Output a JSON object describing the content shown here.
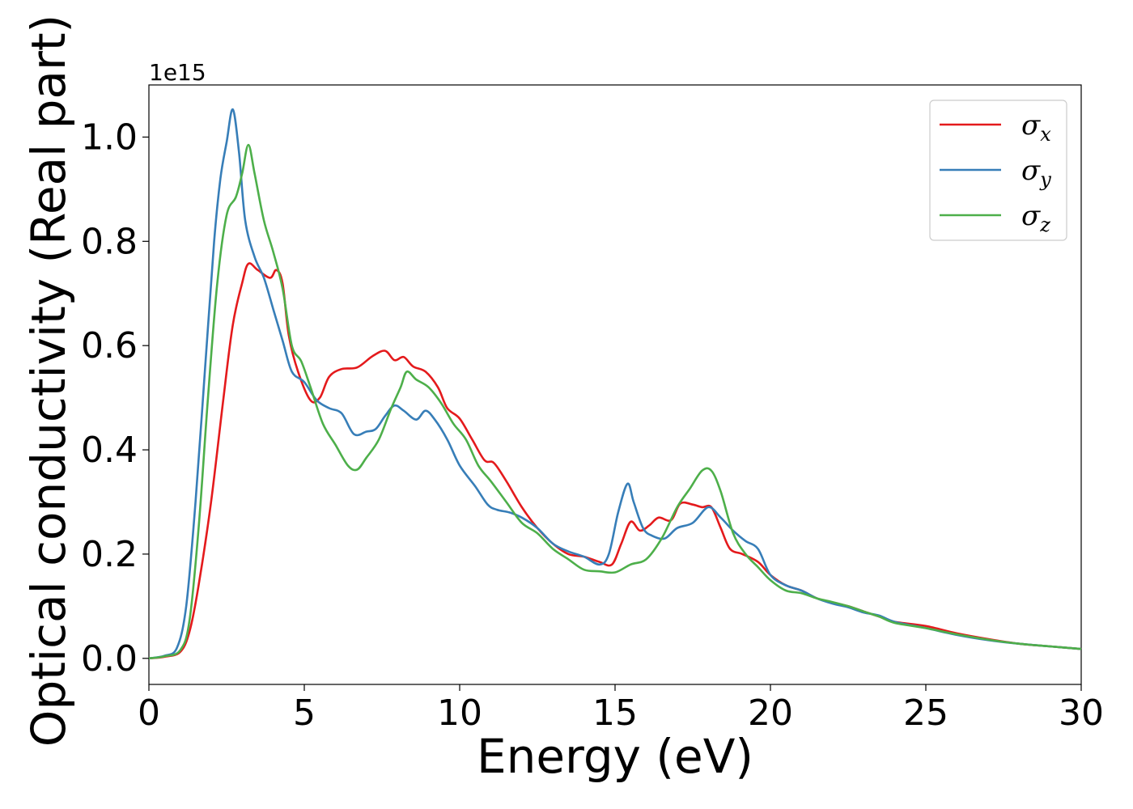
{
  "chart_data": {
    "type": "line",
    "title": "",
    "xlabel": "Energy (eV)",
    "ylabel": "Optical conductivity (Real part)",
    "y_offset_label": "1e15",
    "xlim": [
      0,
      30
    ],
    "ylim": [
      -0.05,
      1.1
    ],
    "x_ticks": [
      0,
      5,
      10,
      15,
      20,
      25,
      30
    ],
    "x_tick_labels": [
      "0",
      "5",
      "10",
      "15",
      "20",
      "25",
      "30"
    ],
    "y_ticks": [
      0.0,
      0.2,
      0.4,
      0.6,
      0.8,
      1.0
    ],
    "y_tick_labels": [
      "0.0",
      "0.2",
      "0.4",
      "0.6",
      "0.8",
      "1.0"
    ],
    "grid": false,
    "legend_position": "top-right",
    "series": [
      {
        "name": "σx",
        "label_main": "σ",
        "label_sub": "x",
        "color": "#e41a1c",
        "points": [
          [
            0,
            0
          ],
          [
            0.5,
            0.003
          ],
          [
            1.0,
            0.012
          ],
          [
            1.3,
            0.05
          ],
          [
            1.6,
            0.14
          ],
          [
            2.0,
            0.3
          ],
          [
            2.4,
            0.5
          ],
          [
            2.7,
            0.64
          ],
          [
            3.0,
            0.72
          ],
          [
            3.2,
            0.757
          ],
          [
            3.5,
            0.745
          ],
          [
            3.9,
            0.73
          ],
          [
            4.1,
            0.745
          ],
          [
            4.3,
            0.72
          ],
          [
            4.5,
            0.62
          ],
          [
            4.8,
            0.55
          ],
          [
            5.2,
            0.495
          ],
          [
            5.5,
            0.5
          ],
          [
            5.8,
            0.54
          ],
          [
            6.2,
            0.555
          ],
          [
            6.7,
            0.558
          ],
          [
            7.2,
            0.58
          ],
          [
            7.6,
            0.59
          ],
          [
            7.9,
            0.572
          ],
          [
            8.2,
            0.578
          ],
          [
            8.5,
            0.56
          ],
          [
            8.9,
            0.55
          ],
          [
            9.3,
            0.52
          ],
          [
            9.6,
            0.48
          ],
          [
            10.0,
            0.46
          ],
          [
            10.4,
            0.42
          ],
          [
            10.8,
            0.38
          ],
          [
            11.1,
            0.375
          ],
          [
            11.5,
            0.34
          ],
          [
            12.0,
            0.29
          ],
          [
            12.5,
            0.25
          ],
          [
            13.0,
            0.22
          ],
          [
            13.5,
            0.2
          ],
          [
            14.0,
            0.195
          ],
          [
            14.5,
            0.185
          ],
          [
            14.9,
            0.18
          ],
          [
            15.2,
            0.22
          ],
          [
            15.5,
            0.262
          ],
          [
            15.8,
            0.245
          ],
          [
            16.1,
            0.255
          ],
          [
            16.4,
            0.27
          ],
          [
            16.8,
            0.265
          ],
          [
            17.1,
            0.297
          ],
          [
            17.5,
            0.295
          ],
          [
            17.8,
            0.29
          ],
          [
            18.1,
            0.29
          ],
          [
            18.4,
            0.25
          ],
          [
            18.7,
            0.21
          ],
          [
            19.1,
            0.2
          ],
          [
            19.6,
            0.185
          ],
          [
            20.0,
            0.16
          ],
          [
            20.5,
            0.14
          ],
          [
            21.0,
            0.13
          ],
          [
            21.5,
            0.115
          ],
          [
            22.0,
            0.107
          ],
          [
            22.5,
            0.1
          ],
          [
            23.0,
            0.09
          ],
          [
            23.5,
            0.08
          ],
          [
            24.0,
            0.07
          ],
          [
            25.0,
            0.062
          ],
          [
            26.0,
            0.048
          ],
          [
            27.0,
            0.037
          ],
          [
            28.0,
            0.028
          ],
          [
            29.0,
            0.023
          ],
          [
            30.0,
            0.018
          ]
        ]
      },
      {
        "name": "σy",
        "label_main": "σ",
        "label_sub": "y",
        "color": "#377eb8",
        "points": [
          [
            0,
            0
          ],
          [
            0.5,
            0.005
          ],
          [
            0.9,
            0.02
          ],
          [
            1.2,
            0.1
          ],
          [
            1.5,
            0.3
          ],
          [
            1.8,
            0.55
          ],
          [
            2.1,
            0.8
          ],
          [
            2.3,
            0.92
          ],
          [
            2.5,
            0.99
          ],
          [
            2.7,
            1.053
          ],
          [
            2.9,
            0.97
          ],
          [
            3.1,
            0.84
          ],
          [
            3.4,
            0.77
          ],
          [
            3.7,
            0.73
          ],
          [
            4.0,
            0.67
          ],
          [
            4.3,
            0.61
          ],
          [
            4.6,
            0.55
          ],
          [
            5.0,
            0.53
          ],
          [
            5.4,
            0.495
          ],
          [
            5.8,
            0.48
          ],
          [
            6.2,
            0.47
          ],
          [
            6.6,
            0.43
          ],
          [
            7.0,
            0.435
          ],
          [
            7.3,
            0.44
          ],
          [
            7.6,
            0.465
          ],
          [
            7.9,
            0.485
          ],
          [
            8.2,
            0.475
          ],
          [
            8.6,
            0.458
          ],
          [
            8.9,
            0.475
          ],
          [
            9.2,
            0.458
          ],
          [
            9.6,
            0.42
          ],
          [
            10.0,
            0.37
          ],
          [
            10.5,
            0.33
          ],
          [
            10.9,
            0.295
          ],
          [
            11.2,
            0.285
          ],
          [
            11.6,
            0.28
          ],
          [
            12.0,
            0.27
          ],
          [
            12.5,
            0.25
          ],
          [
            13.0,
            0.22
          ],
          [
            13.5,
            0.205
          ],
          [
            14.0,
            0.195
          ],
          [
            14.5,
            0.18
          ],
          [
            14.8,
            0.2
          ],
          [
            15.1,
            0.28
          ],
          [
            15.4,
            0.335
          ],
          [
            15.6,
            0.3
          ],
          [
            15.9,
            0.25
          ],
          [
            16.2,
            0.235
          ],
          [
            16.6,
            0.23
          ],
          [
            17.0,
            0.25
          ],
          [
            17.5,
            0.26
          ],
          [
            18.0,
            0.29
          ],
          [
            18.4,
            0.27
          ],
          [
            18.8,
            0.245
          ],
          [
            19.2,
            0.225
          ],
          [
            19.6,
            0.21
          ],
          [
            20.0,
            0.16
          ],
          [
            20.5,
            0.14
          ],
          [
            21.0,
            0.13
          ],
          [
            21.5,
            0.115
          ],
          [
            22.0,
            0.105
          ],
          [
            22.5,
            0.098
          ],
          [
            23.0,
            0.088
          ],
          [
            23.5,
            0.082
          ],
          [
            24.0,
            0.07
          ],
          [
            25.0,
            0.058
          ],
          [
            26.0,
            0.045
          ],
          [
            27.0,
            0.035
          ],
          [
            28.0,
            0.028
          ],
          [
            29.0,
            0.023
          ],
          [
            30.0,
            0.018
          ]
        ]
      },
      {
        "name": "σz",
        "label_main": "σ",
        "label_sub": "z",
        "color": "#4daf4a",
        "points": [
          [
            0,
            0
          ],
          [
            0.5,
            0.004
          ],
          [
            1.0,
            0.015
          ],
          [
            1.3,
            0.07
          ],
          [
            1.6,
            0.25
          ],
          [
            1.9,
            0.5
          ],
          [
            2.2,
            0.72
          ],
          [
            2.5,
            0.85
          ],
          [
            2.8,
            0.885
          ],
          [
            3.0,
            0.93
          ],
          [
            3.2,
            0.985
          ],
          [
            3.4,
            0.93
          ],
          [
            3.7,
            0.84
          ],
          [
            4.0,
            0.78
          ],
          [
            4.3,
            0.71
          ],
          [
            4.6,
            0.6
          ],
          [
            4.9,
            0.57
          ],
          [
            5.2,
            0.52
          ],
          [
            5.6,
            0.45
          ],
          [
            6.0,
            0.41
          ],
          [
            6.4,
            0.37
          ],
          [
            6.7,
            0.362
          ],
          [
            7.0,
            0.385
          ],
          [
            7.4,
            0.42
          ],
          [
            7.8,
            0.48
          ],
          [
            8.1,
            0.52
          ],
          [
            8.3,
            0.55
          ],
          [
            8.6,
            0.535
          ],
          [
            9.0,
            0.52
          ],
          [
            9.4,
            0.49
          ],
          [
            9.8,
            0.45
          ],
          [
            10.2,
            0.42
          ],
          [
            10.6,
            0.37
          ],
          [
            11.0,
            0.34
          ],
          [
            11.5,
            0.3
          ],
          [
            12.0,
            0.26
          ],
          [
            12.5,
            0.24
          ],
          [
            13.0,
            0.21
          ],
          [
            13.5,
            0.19
          ],
          [
            14.0,
            0.17
          ],
          [
            14.5,
            0.167
          ],
          [
            15.0,
            0.165
          ],
          [
            15.5,
            0.18
          ],
          [
            16.0,
            0.19
          ],
          [
            16.5,
            0.23
          ],
          [
            17.0,
            0.29
          ],
          [
            17.4,
            0.325
          ],
          [
            17.8,
            0.36
          ],
          [
            18.1,
            0.36
          ],
          [
            18.4,
            0.32
          ],
          [
            18.8,
            0.24
          ],
          [
            19.2,
            0.2
          ],
          [
            19.6,
            0.175
          ],
          [
            20.0,
            0.15
          ],
          [
            20.5,
            0.13
          ],
          [
            21.0,
            0.125
          ],
          [
            21.5,
            0.115
          ],
          [
            22.0,
            0.108
          ],
          [
            22.5,
            0.1
          ],
          [
            23.0,
            0.09
          ],
          [
            23.5,
            0.08
          ],
          [
            24.0,
            0.068
          ],
          [
            25.0,
            0.058
          ],
          [
            26.0,
            0.046
          ],
          [
            27.0,
            0.036
          ],
          [
            28.0,
            0.028
          ],
          [
            29.0,
            0.023
          ],
          [
            30.0,
            0.018
          ]
        ]
      }
    ]
  }
}
